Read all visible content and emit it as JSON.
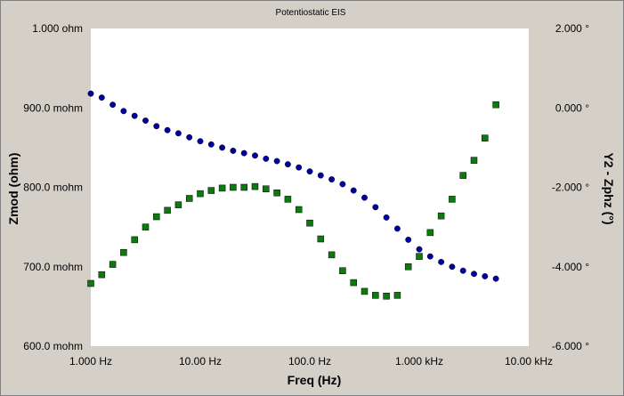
{
  "chart_data": {
    "type": "scatter",
    "title": "Potentiostatic EIS",
    "xlabel": "Freq (Hz)",
    "ylabel_left": "Zmod (ohm)",
    "ylabel_right": "Y2 - Zphz (°)",
    "x_scale": "log",
    "xlim": [
      1,
      10000
    ],
    "ylim_left": [
      600,
      1000
    ],
    "ylim_right": [
      -6,
      2
    ],
    "grid": false,
    "x_ticks": [
      {
        "value": 1,
        "label": "1.000 Hz"
      },
      {
        "value": 10,
        "label": "10.00 Hz"
      },
      {
        "value": 100,
        "label": "100.0 Hz"
      },
      {
        "value": 1000,
        "label": "1.000 kHz"
      },
      {
        "value": 10000,
        "label": "10.00 kHz"
      }
    ],
    "y_left_ticks": [
      {
        "value": 1000,
        "label": "1.000 ohm"
      },
      {
        "value": 900,
        "label": "900.0 mohm"
      },
      {
        "value": 800,
        "label": "800.0 mohm"
      },
      {
        "value": 700,
        "label": "700.0 mohm"
      },
      {
        "value": 600,
        "label": "600.0 mohm"
      }
    ],
    "y_right_ticks": [
      {
        "value": 2,
        "label": "2.000 °"
      },
      {
        "value": 0,
        "label": "0.000 °"
      },
      {
        "value": -2,
        "label": "-2.000 °"
      },
      {
        "value": -4,
        "label": "-4.000 °"
      },
      {
        "value": -6,
        "label": "-6.000 °"
      }
    ],
    "x": [
      1.0,
      1.259,
      1.585,
      1.995,
      2.512,
      3.162,
      3.981,
      5.012,
      6.31,
      7.943,
      10.0,
      12.59,
      15.85,
      19.95,
      25.12,
      31.62,
      39.81,
      50.12,
      63.1,
      79.43,
      100.0,
      125.9,
      158.5,
      199.5,
      251.2,
      316.2,
      398.1,
      501.2,
      631.0,
      794.3,
      1000.0,
      1259.0,
      1585.0,
      1995.0,
      2512.0,
      3162.0,
      3981.0,
      5012.0
    ],
    "series": [
      {
        "axis": "left",
        "color": "#0000a0",
        "marker": "circle",
        "values": [
          918,
          913,
          904,
          896,
          890,
          884,
          877,
          872,
          868,
          863,
          858,
          854,
          850,
          846,
          843,
          840,
          836,
          833,
          829,
          825,
          820,
          815,
          810,
          804,
          796,
          787,
          775,
          762,
          748,
          734,
          722,
          713,
          706,
          700,
          695,
          691,
          688,
          685
        ]
      },
      {
        "axis": "right",
        "color": "#0e7a0e",
        "marker": "square",
        "values": [
          -4.42,
          -4.2,
          -3.94,
          -3.64,
          -3.32,
          -3.0,
          -2.74,
          -2.58,
          -2.44,
          -2.28,
          -2.16,
          -2.08,
          -2.02,
          -2.0,
          -2.0,
          -1.98,
          -2.04,
          -2.14,
          -2.3,
          -2.56,
          -2.9,
          -3.3,
          -3.7,
          -4.1,
          -4.4,
          -4.62,
          -4.72,
          -4.74,
          -4.72,
          -4.0,
          -3.74,
          -3.14,
          -2.72,
          -2.3,
          -1.7,
          -1.32,
          -0.76,
          0.08
        ]
      }
    ]
  }
}
